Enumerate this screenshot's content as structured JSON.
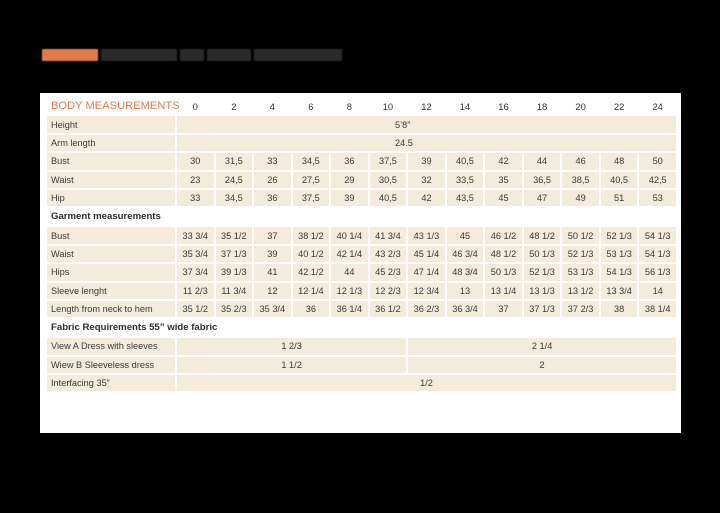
{
  "title": {
    "note": "title text is rendered illegibly (obscured)",
    "accent_color": "#e07b4c",
    "text_color": "#2a2a2a"
  },
  "table": {
    "header_label": "BODY MEASUREMENTS",
    "sizes": [
      "0",
      "2",
      "4",
      "6",
      "8",
      "10",
      "12",
      "14",
      "16",
      "18",
      "20",
      "22",
      "24"
    ],
    "body_rows": [
      {
        "label": "Height",
        "span_value": "5’8”"
      },
      {
        "label": "Arm length",
        "span_value": "24.5"
      },
      {
        "label": "Bust",
        "values": [
          "30",
          "31,5",
          "33",
          "34,5",
          "36",
          "37,5",
          "39",
          "40,5",
          "42",
          "44",
          "46",
          "48",
          "50"
        ]
      },
      {
        "label": "Waist",
        "values": [
          "23",
          "24,5",
          "26",
          "27,5",
          "29",
          "30,5",
          "32",
          "33,5",
          "35",
          "36,5",
          "38,5",
          "40,5",
          "42,5"
        ]
      },
      {
        "label": "Hip",
        "values": [
          "33",
          "34,5",
          "36",
          "37,5",
          "39",
          "40,5",
          "42",
          "43,5",
          "45",
          "47",
          "49",
          "51",
          "53"
        ]
      }
    ],
    "garment_section": "Garment measurements",
    "garment_rows": [
      {
        "label": "Bust",
        "values": [
          "33 3/4",
          "35 1/2",
          "37",
          "38 1/2",
          "40 1/4",
          "41 3/4",
          "43 1/3",
          "45",
          "46 1/2",
          "48 1/2",
          "50 1/2",
          "52 1/3",
          "54 1/3"
        ]
      },
      {
        "label": "Waist",
        "values": [
          "35 3/4",
          "37 1/3",
          "39",
          "40 1/2",
          "42 1/4",
          "43 2/3",
          "45 1/4",
          "46 3/4",
          "48 1/2",
          "50 1/3",
          "52 1/3",
          "53 1/3",
          "54 1/3"
        ]
      },
      {
        "label": "Hips",
        "values": [
          "37 3/4",
          "39 1/3",
          "41",
          "42 1/2",
          "44",
          "45 2/3",
          "47 1/4",
          "48 3/4",
          "50 1/3",
          "52 1/3",
          "53 1/3",
          "54 1/3",
          "56 1/3"
        ]
      },
      {
        "label": "Sleeve lenght",
        "values": [
          "11 2/3",
          "11 3/4",
          "12",
          "12 1/4",
          "12 1/3",
          "12 2/3",
          "12 3/4",
          "13",
          "13 1/4",
          "13 1/3",
          "13 1/2",
          "13 3/4",
          "14"
        ]
      },
      {
        "label": "Length from neck to hem",
        "values": [
          "35 1/2",
          "35 2/3",
          "35 3/4",
          "36",
          "36 1/4",
          "36 1/2",
          "36 2/3",
          "36 3/4",
          "37",
          "37 1/3",
          "37 2/3",
          "38",
          "38 1/4"
        ]
      }
    ],
    "fabric_section": "Fabric Requirements 55” wide fabric",
    "fabric_rows": [
      {
        "label": "View A Dress with sleeves",
        "small": "1 2/3",
        "large": "2 1/4"
      },
      {
        "label": "Wiew B Sleeveless dress",
        "small": "1 1/2",
        "large": "2"
      },
      {
        "label": "Interfacing 35”",
        "all": "1/2"
      }
    ]
  },
  "colors": {
    "cell_bg": "#f4ebdb",
    "header_accent": "#e07b4c",
    "page_bg": "#000000",
    "card_bg": "#ffffff"
  }
}
